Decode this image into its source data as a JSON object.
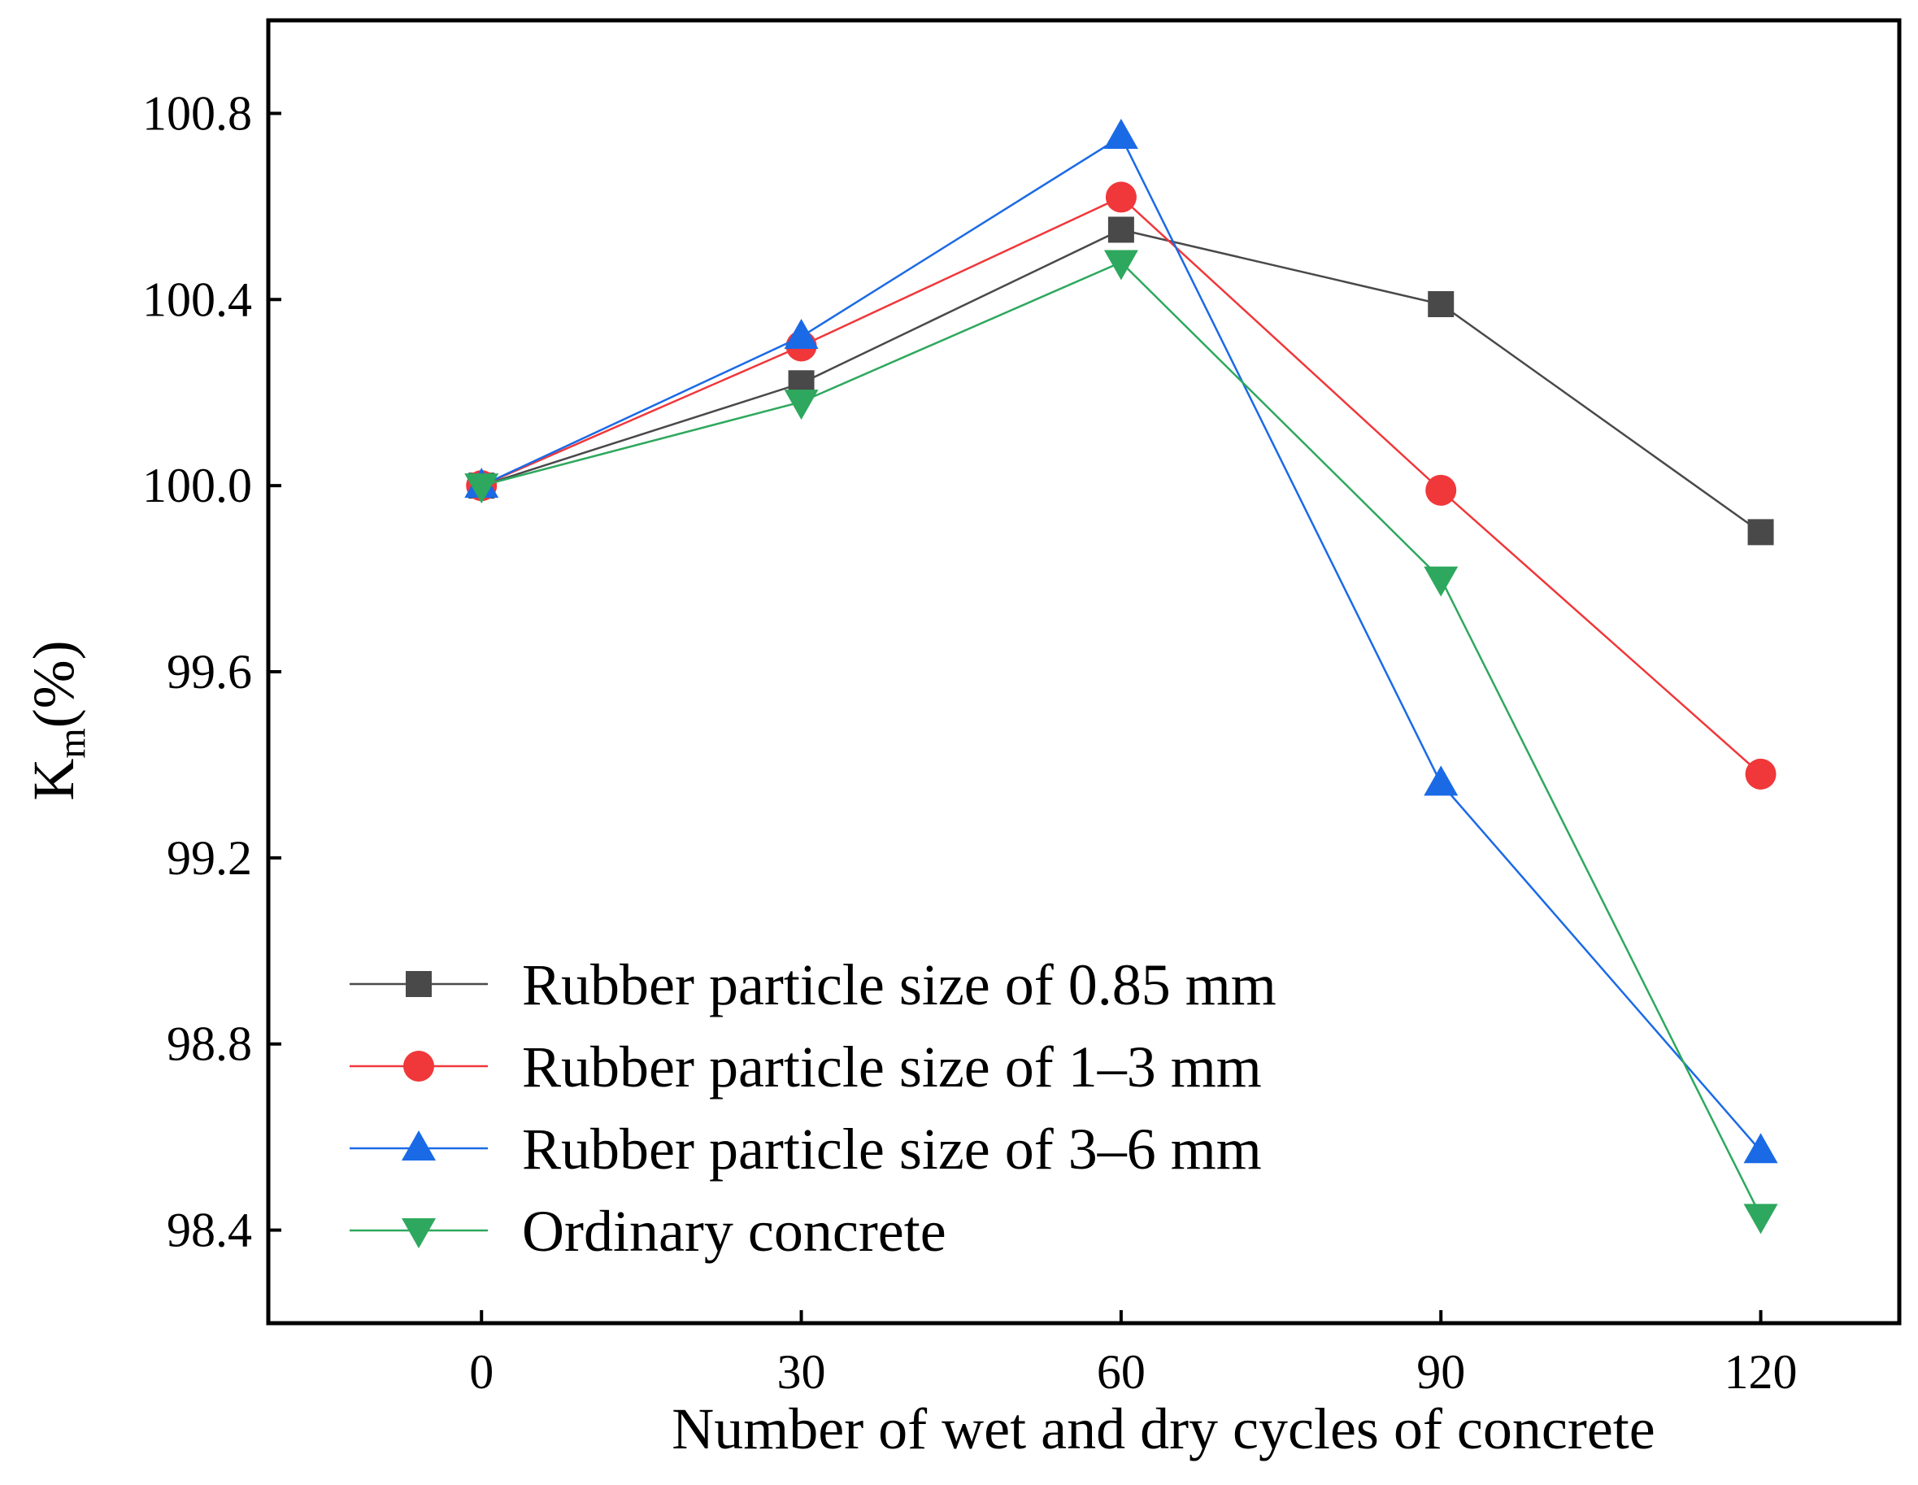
{
  "chart_data": {
    "type": "line",
    "title": "",
    "xlabel": "Number of wet and dry cycles of concrete",
    "ylabel_main": "K",
    "ylabel_sub": "m",
    "ylabel_suffix": "(%)",
    "x": [
      0,
      30,
      60,
      90,
      120
    ],
    "xlim": [
      -20,
      133
    ],
    "ylim": [
      98.2,
      101.0
    ],
    "xticks": [
      0,
      30,
      60,
      90,
      120
    ],
    "xtick_labels": [
      "0",
      "30",
      "60",
      "90",
      "120"
    ],
    "yticks": [
      98.4,
      98.8,
      99.2,
      99.6,
      100.0,
      100.4,
      100.8
    ],
    "ytick_labels": [
      "98.4",
      "98.8",
      "99.2",
      "99.6",
      "100.0",
      "100.4",
      "100.8"
    ],
    "grid": false,
    "legend_position": "bottom-left",
    "series": [
      {
        "name": "Rubber particle size of 0.85 mm",
        "marker": "square",
        "color": "#494949",
        "values": [
          100.0,
          100.22,
          100.55,
          100.39,
          99.9
        ]
      },
      {
        "name": "Rubber particle size of 1–3  mm",
        "marker": "circle",
        "color": "#f0373a",
        "values": [
          100.0,
          100.3,
          100.62,
          99.99,
          99.38
        ]
      },
      {
        "name": "Rubber particle size of 3–6  mm",
        "marker": "triangle-up",
        "color": "#1a6ae6",
        "values": [
          100.0,
          100.32,
          100.75,
          99.36,
          98.57
        ]
      },
      {
        "name": "Ordinary concrete",
        "marker": "triangle-down",
        "color": "#2ea85e",
        "values": [
          100.0,
          100.18,
          100.48,
          99.8,
          98.43
        ]
      }
    ]
  }
}
